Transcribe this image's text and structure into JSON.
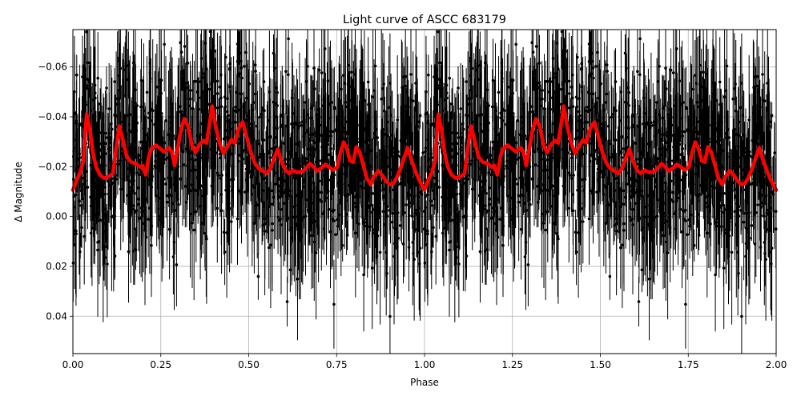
{
  "chart_data": {
    "type": "scatter",
    "title": "Light curve of ASCC 683179",
    "xlabel": "Phase",
    "ylabel": "Δ Magnitude",
    "xlim": [
      0.0,
      2.0
    ],
    "ylim": [
      0.055,
      -0.075
    ],
    "y_inverted": true,
    "grid": true,
    "legend": null,
    "x_ticks": [
      "0.00",
      "0.25",
      "0.50",
      "0.75",
      "1.00",
      "1.25",
      "1.50",
      "1.75",
      "2.00"
    ],
    "x_tick_values": [
      0,
      0.25,
      0.5,
      0.75,
      1.0,
      1.25,
      1.5,
      1.75,
      2.0
    ],
    "y_ticks": [
      "−0.06",
      "−0.04",
      "−0.02",
      "0.00",
      "0.02",
      "0.04"
    ],
    "y_tick_values": [
      -0.06,
      -0.04,
      -0.02,
      0.0,
      0.02,
      0.04
    ],
    "series": [
      {
        "name": "observations",
        "kind": "errorbar-scatter",
        "color": "#000000",
        "description": "Dense black points with vertical error bars spanning full y-range, phase-folded and repeated over two cycles",
        "approx_count_per_cycle": 1400,
        "approx_scatter_sigma": 0.02,
        "approx_errorbar_halfwidth": [
          0.005,
          0.03
        ]
      },
      {
        "name": "smoothed model",
        "kind": "line",
        "color": "#ff0000",
        "linewidth": 4,
        "period_phase": [
          0.0,
          0.009,
          0.021,
          0.03,
          0.039,
          0.048,
          0.057,
          0.066,
          0.077,
          0.089,
          0.103,
          0.114,
          0.123,
          0.132,
          0.141,
          0.153,
          0.166,
          0.18,
          0.191,
          0.198,
          0.207,
          0.216,
          0.223,
          0.237,
          0.248,
          0.26,
          0.273,
          0.282,
          0.289,
          0.298,
          0.308,
          0.317,
          0.328,
          0.339,
          0.349,
          0.36,
          0.371,
          0.38,
          0.39,
          0.396,
          0.405,
          0.417,
          0.428,
          0.44,
          0.451,
          0.46,
          0.471,
          0.483,
          0.494,
          0.506,
          0.517,
          0.528,
          0.54,
          0.551,
          0.562,
          0.574,
          0.583,
          0.592,
          0.604,
          0.615,
          0.626,
          0.638,
          0.651,
          0.663,
          0.674,
          0.683,
          0.695,
          0.706,
          0.718,
          0.729,
          0.74,
          0.752,
          0.761,
          0.77,
          0.779,
          0.788,
          0.797,
          0.806,
          0.816,
          0.825,
          0.836,
          0.847,
          0.856,
          0.868,
          0.879,
          0.891,
          0.902,
          0.911,
          0.92,
          0.932,
          0.943,
          0.952,
          0.961,
          0.973,
          0.984,
          0.995,
          1.0
        ],
        "period_mag": [
          -0.0106,
          -0.0141,
          -0.0177,
          -0.0225,
          -0.0411,
          -0.0353,
          -0.0257,
          -0.0199,
          -0.0167,
          -0.0154,
          -0.0161,
          -0.0173,
          -0.0273,
          -0.0363,
          -0.0315,
          -0.0241,
          -0.0218,
          -0.0212,
          -0.0199,
          -0.0205,
          -0.0167,
          -0.0241,
          -0.0273,
          -0.0286,
          -0.0273,
          -0.026,
          -0.0276,
          -0.0257,
          -0.0205,
          -0.0273,
          -0.0353,
          -0.0392,
          -0.036,
          -0.0283,
          -0.0257,
          -0.0289,
          -0.0305,
          -0.0295,
          -0.0385,
          -0.0443,
          -0.0369,
          -0.0295,
          -0.0254,
          -0.0283,
          -0.0308,
          -0.0295,
          -0.0353,
          -0.0379,
          -0.0321,
          -0.0257,
          -0.0215,
          -0.0193,
          -0.0183,
          -0.0173,
          -0.0193,
          -0.0241,
          -0.027,
          -0.0225,
          -0.0186,
          -0.0173,
          -0.0186,
          -0.0177,
          -0.018,
          -0.0193,
          -0.0212,
          -0.0202,
          -0.0183,
          -0.0193,
          -0.0209,
          -0.0199,
          -0.0186,
          -0.0199,
          -0.0257,
          -0.0299,
          -0.0273,
          -0.0225,
          -0.0218,
          -0.0279,
          -0.0257,
          -0.0209,
          -0.0154,
          -0.0128,
          -0.0161,
          -0.0183,
          -0.0167,
          -0.0141,
          -0.0128,
          -0.0132,
          -0.0154,
          -0.0193,
          -0.0241,
          -0.0276,
          -0.0234,
          -0.0186,
          -0.0148,
          -0.0119,
          -0.0106
        ],
        "repeats": 2
      }
    ]
  }
}
